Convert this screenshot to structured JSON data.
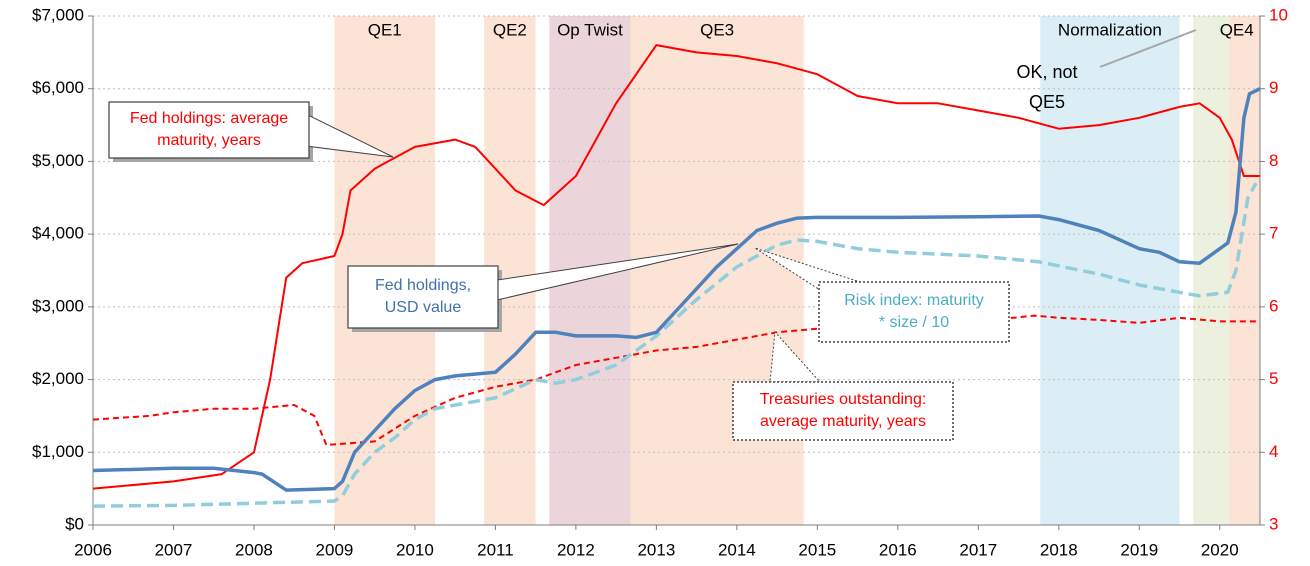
{
  "chart_data": {
    "type": "line",
    "xlim": [
      2006,
      2020.5
    ],
    "xticks": [
      2006,
      2007,
      2008,
      2009,
      2010,
      2011,
      2012,
      2013,
      2014,
      2015,
      2016,
      2017,
      2018,
      2019,
      2020
    ],
    "ylim": [
      0,
      7000
    ],
    "yticks": [
      {
        "value": 0,
        "label": "$0"
      },
      {
        "value": 1000,
        "label": "$1,000"
      },
      {
        "value": 2000,
        "label": "$2,000"
      },
      {
        "value": 3000,
        "label": "$3,000"
      },
      {
        "value": 4000,
        "label": "$4,000"
      },
      {
        "value": 5000,
        "label": "$5,000"
      },
      {
        "value": 6000,
        "label": "$6,000"
      },
      {
        "value": 7000,
        "label": "$7,000"
      }
    ],
    "y2lim": [
      3,
      10
    ],
    "y2ticks": [
      3,
      4,
      5,
      6,
      7,
      8,
      9,
      10
    ],
    "y2_color": "#ff0000",
    "grid": true,
    "bands": [
      {
        "label": "QE1",
        "start": 2009.0,
        "end": 2010.25,
        "color": "#fbe4d5"
      },
      {
        "label": "QE2",
        "start": 2010.86,
        "end": 2011.5,
        "color": "#fbe4d5"
      },
      {
        "label": "Op Twist",
        "start": 2011.67,
        "end": 2012.68,
        "color": "#ecd5da"
      },
      {
        "label": "QE3",
        "start": 2012.68,
        "end": 2014.83,
        "color": "#fbe4d5"
      },
      {
        "label": "Normalization",
        "start": 2017.77,
        "end": 2019.5,
        "color": "#dbeef5"
      },
      {
        "label": null,
        "start": 2019.67,
        "end": 2020.12,
        "color": "#ebf1de"
      },
      {
        "label": "QE4",
        "start": 2020.12,
        "end": 2020.5,
        "color": "#fbe4d5"
      }
    ],
    "series": [
      {
        "name": "Fed holdings: average maturity, years",
        "axis": "y2",
        "color": "#ff0000",
        "dash": false,
        "x": [
          2006,
          2007,
          2007.6,
          2008,
          2008.2,
          2008.4,
          2008.6,
          2009,
          2009.1,
          2009.2,
          2009.5,
          2010,
          2010.5,
          2010.75,
          2011,
          2011.25,
          2011.6,
          2012,
          2012.5,
          2013,
          2013.5,
          2014,
          2014.5,
          2015,
          2015.5,
          2016,
          2016.5,
          2017,
          2017.5,
          2018,
          2018.5,
          2019,
          2019.5,
          2019.75,
          2020,
          2020.15,
          2020.3,
          2020.5
        ],
        "values": [
          3.5,
          3.6,
          3.7,
          4.0,
          5.0,
          6.4,
          6.6,
          6.7,
          7.0,
          7.6,
          7.9,
          8.2,
          8.3,
          8.2,
          7.9,
          7.6,
          7.4,
          7.8,
          8.8,
          9.6,
          9.5,
          9.45,
          9.35,
          9.2,
          8.9,
          8.8,
          8.8,
          8.7,
          8.6,
          8.45,
          8.5,
          8.6,
          8.75,
          8.8,
          8.6,
          8.3,
          7.8,
          7.8
        ]
      },
      {
        "name": "Treasuries outstanding: average maturity, years",
        "axis": "y2",
        "color": "#ff0000",
        "dash": true,
        "x": [
          2006,
          2006.7,
          2007,
          2007.5,
          2008,
          2008.5,
          2008.75,
          2008.9,
          2009.5,
          2010,
          2010.5,
          2011,
          2011.5,
          2012,
          2012.5,
          2013,
          2013.5,
          2014,
          2014.5,
          2015,
          2016,
          2017,
          2017.7,
          2018,
          2018.5,
          2019,
          2019.5,
          2020,
          2020.5
        ],
        "values": [
          4.45,
          4.5,
          4.55,
          4.6,
          4.6,
          4.65,
          4.5,
          4.1,
          4.15,
          4.5,
          4.75,
          4.9,
          5.0,
          5.2,
          5.3,
          5.4,
          5.45,
          5.55,
          5.65,
          5.7,
          5.75,
          5.8,
          5.88,
          5.85,
          5.82,
          5.78,
          5.85,
          5.8,
          5.8
        ]
      },
      {
        "name": "Fed holdings, USD value",
        "axis": "y",
        "color": "#4f81bd",
        "dash": false,
        "x": [
          2006,
          2007,
          2007.5,
          2008,
          2008.1,
          2008.4,
          2009,
          2009.1,
          2009.25,
          2009.5,
          2009.75,
          2010,
          2010.25,
          2010.5,
          2011,
          2011.25,
          2011.5,
          2011.75,
          2012,
          2012.5,
          2012.75,
          2013,
          2013.25,
          2013.5,
          2013.75,
          2014,
          2014.25,
          2014.5,
          2014.75,
          2015,
          2016,
          2017,
          2017.75,
          2018,
          2018.5,
          2019,
          2019.25,
          2019.5,
          2019.75,
          2020,
          2020.1,
          2020.2,
          2020.3,
          2020.37,
          2020.5
        ],
        "values": [
          750,
          780,
          780,
          720,
          700,
          480,
          500,
          600,
          1000,
          1300,
          1600,
          1850,
          2000,
          2050,
          2100,
          2350,
          2650,
          2650,
          2600,
          2600,
          2580,
          2650,
          2950,
          3250,
          3550,
          3800,
          4050,
          4150,
          4220,
          4230,
          4230,
          4240,
          4250,
          4200,
          4050,
          3800,
          3750,
          3620,
          3600,
          3800,
          3880,
          4300,
          5600,
          5930,
          6000
        ]
      },
      {
        "name": "Risk index: maturity * size / 10",
        "axis": "y",
        "color": "#92cddc",
        "dash": true,
        "x": [
          2006,
          2007,
          2008,
          2009,
          2009.1,
          2009.25,
          2009.5,
          2009.75,
          2010,
          2010.25,
          2010.5,
          2011,
          2011.5,
          2011.75,
          2012,
          2012.5,
          2013,
          2013.5,
          2014,
          2014.5,
          2014.75,
          2015,
          2015.5,
          2016,
          2017,
          2017.75,
          2018.5,
          2019,
          2019.5,
          2019.75,
          2020.1,
          2020.2,
          2020.35,
          2020.45
        ],
        "values": [
          260,
          270,
          300,
          330,
          400,
          700,
          1000,
          1200,
          1450,
          1600,
          1650,
          1750,
          2000,
          1950,
          2000,
          2200,
          2600,
          3100,
          3550,
          3850,
          3920,
          3900,
          3800,
          3750,
          3700,
          3620,
          3450,
          3300,
          3200,
          3150,
          3200,
          3500,
          4500,
          4700
        ]
      }
    ],
    "annotations": [
      {
        "lines": [
          "Fed holdings: average",
          "maturity, years"
        ],
        "color": "#ff0000"
      },
      {
        "lines": [
          "Fed holdings,",
          "USD value"
        ],
        "color": "#3f72ad"
      },
      {
        "lines": [
          "Risk index:    maturity",
          "* size / 10"
        ],
        "color": "#4bacc6"
      },
      {
        "lines": [
          "Treasuries outstanding:",
          "average maturity, years"
        ],
        "color": "#ff0000"
      },
      {
        "lines": [
          "OK, not",
          "QE5"
        ],
        "color": "#000000"
      }
    ]
  }
}
